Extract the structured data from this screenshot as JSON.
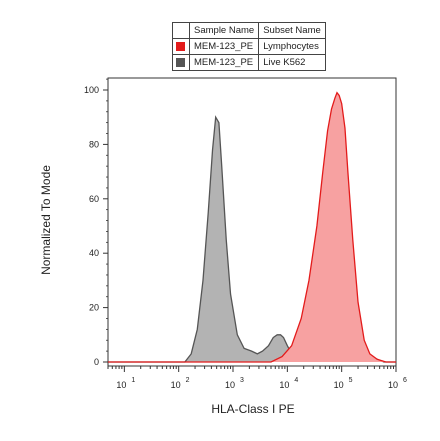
{
  "chart_data": {
    "type": "area",
    "title": "",
    "xlabel": "HLA-Class I PE",
    "ylabel": "Normalized To Mode",
    "x_scale": "log",
    "xlim": [
      5,
      1000000
    ],
    "ylim": [
      0,
      105
    ],
    "x_tick_labels": [
      "10",
      "10",
      "10",
      "10",
      "10",
      "10"
    ],
    "x_tick_exponents": [
      "1",
      "2",
      "3",
      "4",
      "5",
      "6"
    ],
    "x_ticks": [
      10,
      100,
      1000,
      10000,
      100000,
      1000000
    ],
    "y_ticks": [
      0,
      20,
      40,
      60,
      80,
      100
    ],
    "y_tick_labels": [
      "0",
      "20",
      "40",
      "60",
      "80",
      "100"
    ],
    "legend_headers": [
      "Sample Name",
      "Subset Name"
    ],
    "legend_position": "top-center",
    "series": [
      {
        "sample_name": "MEM-123_PE",
        "subset_name": "Lymphocytes",
        "color": "#e31b1b",
        "fill": "#f7a1a1",
        "x": [
          5,
          5000,
          8000,
          12000,
          18000,
          25000,
          35000,
          45000,
          55000,
          65000,
          75000,
          82000,
          90000,
          100000,
          115000,
          130000,
          160000,
          200000,
          260000,
          330000,
          450000,
          650000,
          1000000
        ],
        "y": [
          0,
          0,
          2,
          6,
          16,
          30,
          50,
          70,
          85,
          93,
          97,
          99,
          98,
          95,
          86,
          70,
          45,
          22,
          8,
          3,
          1,
          0,
          0
        ]
      },
      {
        "sample_name": "MEM-123_PE",
        "subset_name": "Live K562",
        "color": "#555555",
        "fill": "#b3b3b3",
        "x": [
          5,
          130,
          170,
          220,
          280,
          350,
          420,
          480,
          550,
          620,
          750,
          900,
          1200,
          1600,
          2200,
          2800,
          3500,
          4500,
          5500,
          6500,
          7500,
          8500,
          10000,
          12000,
          15000,
          20000,
          30000,
          50000,
          80000,
          110000,
          150000,
          200000,
          260000,
          330000,
          450000,
          600000,
          1000000
        ],
        "y": [
          0,
          0,
          3,
          12,
          30,
          55,
          78,
          90,
          88,
          72,
          45,
          25,
          10,
          5,
          4,
          3,
          4,
          6,
          9,
          10,
          10,
          9,
          6,
          3,
          1.5,
          0.5,
          0.5,
          1.5,
          3,
          3,
          2,
          2,
          3,
          2,
          1,
          0,
          0
        ]
      }
    ]
  }
}
